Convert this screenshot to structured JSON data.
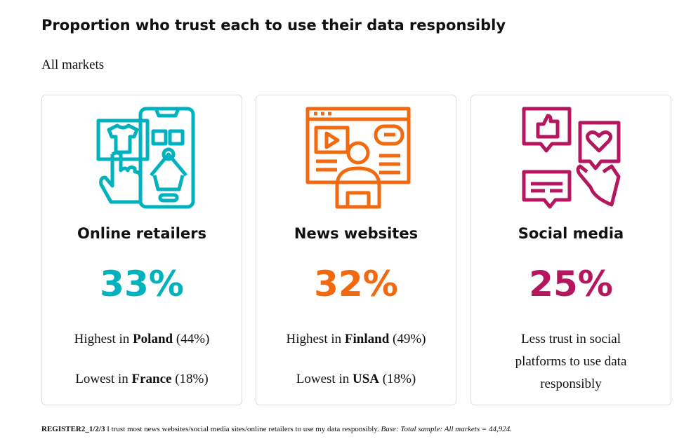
{
  "title": "Proportion who trust each to use their data responsibly",
  "subtitle": "All markets",
  "cards": [
    {
      "heading": "Online retailers",
      "percent": "33%",
      "color": "#00b2bd",
      "icon": "online-shopping-icon",
      "high_pre": "Highest in ",
      "high_country": "Poland",
      "high_val": " (44%)",
      "low_pre": "Lowest in ",
      "low_country": "France",
      "low_val": " (18%)"
    },
    {
      "heading": "News websites",
      "percent": "32%",
      "color": "#f26a0f",
      "icon": "news-website-icon",
      "high_pre": "Highest in ",
      "high_country": "Finland",
      "high_val": " (49%)",
      "low_pre": "Lowest in ",
      "low_country": "USA",
      "low_val": " (18%)"
    },
    {
      "heading": "Social media",
      "percent": "25%",
      "color": "#b5175f",
      "icon": "social-media-icon",
      "note": "Less trust in social platforms to use data responsibly"
    }
  ],
  "footer": {
    "code": "REGISTER2_1/2/3",
    "text": " I trust most news websites/social media sites/online retailers to use my data responsibly. ",
    "base": "Base",
    "base_rest": ": Total sample: All markets = 44,924."
  }
}
